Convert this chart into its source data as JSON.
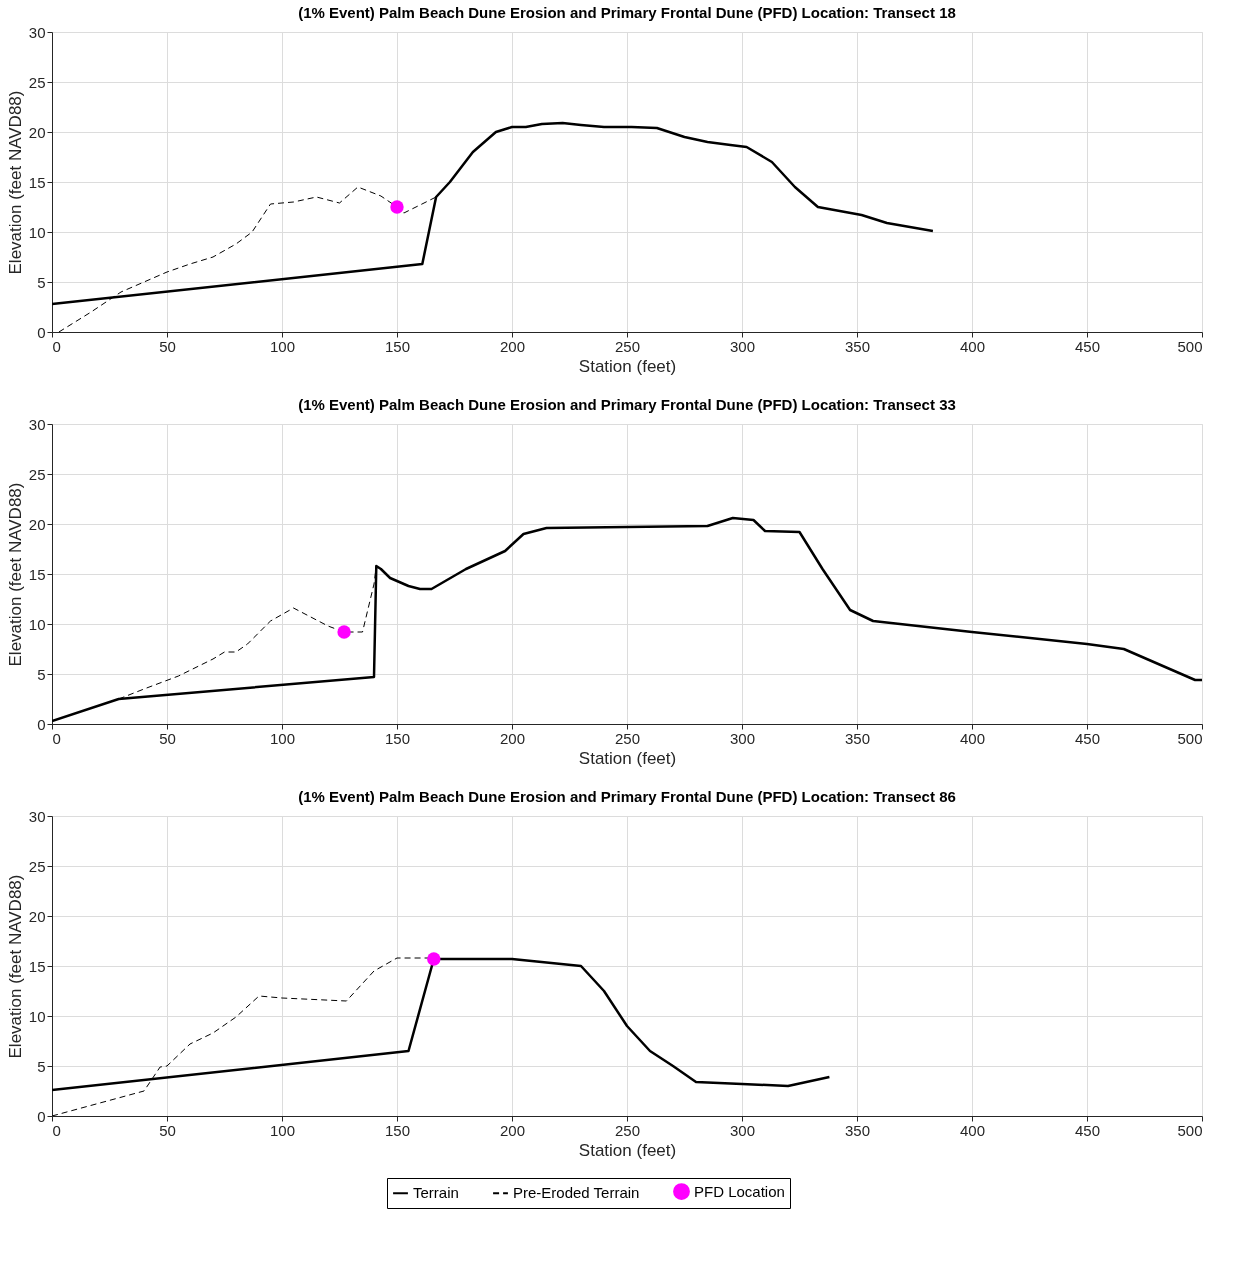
{
  "chart_data": [
    {
      "type": "line",
      "title": "(1% Event) Palm Beach Dune Erosion and Primary Frontal Dune (PFD) Location: Transect 18",
      "xlabel": "Station (feet)",
      "ylabel": "Elevation (feet NAVD88)",
      "xlim": [
        0,
        500
      ],
      "ylim": [
        0,
        30
      ],
      "xticks": [
        0,
        50,
        100,
        150,
        200,
        250,
        300,
        350,
        400,
        450,
        500
      ],
      "yticks": [
        0,
        5,
        10,
        15,
        20,
        25,
        30
      ],
      "grid": true,
      "series": [
        {
          "line_style": "solid",
          "color": "#000000",
          "x": [
            0,
            161,
            167,
            173,
            183,
            193,
            200,
            206,
            213,
            222,
            230,
            240,
            252,
            263,
            275,
            285,
            295,
            302,
            313,
            323,
            333,
            352,
            363,
            383
          ],
          "values": [
            2.8,
            6.8,
            13.5,
            15,
            18,
            20,
            20.5,
            20.5,
            20.8,
            20.9,
            20.7,
            20.5,
            20.5,
            20.4,
            19.5,
            19,
            18.7,
            18.5,
            17,
            14.5,
            12.5,
            11.7,
            10.9,
            10.1
          ]
        },
        {
          "line_style": "dashed",
          "color": "#000000",
          "x": [
            3,
            17,
            30,
            40,
            50,
            60,
            70,
            80,
            87,
            95,
            105,
            115,
            125,
            133,
            143,
            150,
            153,
            167
          ],
          "values": [
            0,
            2,
            4,
            5,
            6,
            6.8,
            7.5,
            8.8,
            10,
            12.8,
            13,
            13.5,
            12.9,
            14.5,
            13.6,
            12.5,
            11.9,
            13.5
          ]
        },
        {
          "type": "scatter",
          "marker": "circle",
          "color": "#ff00ff",
          "x": [
            150
          ],
          "values": [
            12.5
          ]
        }
      ]
    },
    {
      "type": "line",
      "title": "(1% Event) Palm Beach Dune Erosion and Primary Frontal Dune (PFD) Location: Transect 33",
      "xlabel": "Station (feet)",
      "ylabel": "Elevation (feet NAVD88)",
      "xlim": [
        0,
        500
      ],
      "ylim": [
        0,
        30
      ],
      "xticks": [
        0,
        50,
        100,
        150,
        200,
        250,
        300,
        350,
        400,
        450,
        500
      ],
      "yticks": [
        0,
        5,
        10,
        15,
        20,
        25,
        30
      ],
      "grid": true,
      "series": [
        {
          "line_style": "solid",
          "color": "#000000",
          "x": [
            0,
            29,
            140,
            141,
            143,
            147,
            155,
            160,
            165,
            180,
            197,
            205,
            215,
            285,
            296,
            305,
            310,
            325,
            335,
            347,
            357,
            400,
            450,
            466,
            497,
            500
          ],
          "values": [
            0.3,
            2.5,
            4.7,
            15.8,
            15.5,
            14.6,
            13.8,
            13.5,
            13.5,
            15.5,
            17.3,
            19,
            19.6,
            19.8,
            20.6,
            20.4,
            19.3,
            19.2,
            15.5,
            11.4,
            10.3,
            9.2,
            8,
            7.5,
            4.4,
            4.4
          ]
        },
        {
          "line_style": "dashed",
          "color": "#000000",
          "x": [
            29,
            40,
            55,
            70,
            75,
            80,
            85,
            95,
            105,
            120,
            127,
            135,
            140,
            141
          ],
          "values": [
            2.5,
            3.5,
            4.8,
            6.5,
            7.2,
            7.2,
            8,
            10.3,
            11.6,
            9.8,
            9.2,
            9.2,
            14,
            15.8
          ]
        },
        {
          "type": "scatter",
          "marker": "circle",
          "color": "#ff00ff",
          "x": [
            127
          ],
          "values": [
            9.2
          ]
        }
      ]
    },
    {
      "type": "line",
      "title": "(1% Event) Palm Beach Dune Erosion and Primary Frontal Dune (PFD) Location: Transect 86",
      "xlabel": "Station (feet)",
      "ylabel": "Elevation (feet NAVD88)",
      "xlim": [
        0,
        500
      ],
      "ylim": [
        0,
        30
      ],
      "xticks": [
        0,
        50,
        100,
        150,
        200,
        250,
        300,
        350,
        400,
        450,
        500
      ],
      "yticks": [
        0,
        5,
        10,
        15,
        20,
        25,
        30
      ],
      "grid": true,
      "legend": "bottom",
      "series": [
        {
          "name": "Terrain",
          "line_style": "solid",
          "color": "#000000",
          "x": [
            0,
            155,
            166,
            200,
            230,
            240,
            250,
            260,
            270,
            280,
            290,
            300,
            320,
            338
          ],
          "values": [
            2.6,
            6.5,
            15.7,
            15.7,
            15,
            12.5,
            9,
            6.5,
            5,
            3.4,
            3.3,
            3.2,
            3,
            3.9
          ]
        },
        {
          "name": "Pre-Eroded Terrain",
          "line_style": "dashed",
          "color": "#000000",
          "x": [
            0,
            40,
            47,
            50,
            60,
            70,
            80,
            90,
            100,
            128,
            140,
            150,
            166
          ],
          "values": [
            0,
            2.5,
            4.9,
            5,
            7.2,
            8.3,
            9.9,
            12,
            11.8,
            11.5,
            14.5,
            15.8,
            15.8
          ]
        },
        {
          "name": "PFD Location",
          "type": "scatter",
          "marker": "circle",
          "color": "#ff00ff",
          "x": [
            166
          ],
          "values": [
            15.7
          ]
        }
      ]
    }
  ]
}
